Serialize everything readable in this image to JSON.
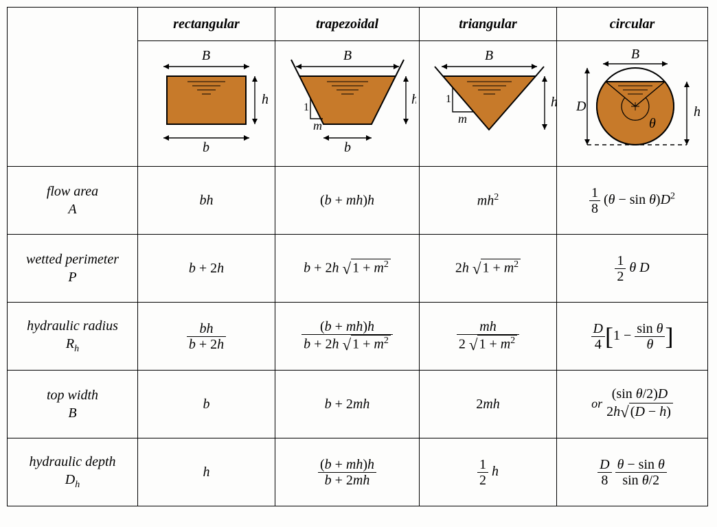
{
  "colors": {
    "fill": "#c77a2a",
    "stroke": "#000000",
    "bg": "#fdfdfc"
  },
  "columns": [
    {
      "key": "rectangular",
      "label": "rectangular"
    },
    {
      "key": "trapezoidal",
      "label": "trapezoidal"
    },
    {
      "key": "triangular",
      "label": "triangular"
    },
    {
      "key": "circular",
      "label": "circular"
    }
  ],
  "rows": [
    {
      "key": "flow_area",
      "label": "flow area",
      "symbol": "A"
    },
    {
      "key": "wetted_perimeter",
      "label": "wetted perimeter",
      "symbol": "P"
    },
    {
      "key": "hydraulic_radius",
      "label": "hydraulic radius",
      "symbol": "R",
      "sub": "h"
    },
    {
      "key": "top_width",
      "label": "top width",
      "symbol": "B"
    },
    {
      "key": "hydraulic_depth",
      "label": "hydraulic depth",
      "symbol": "D",
      "sub": "h"
    }
  ],
  "diagram_labels": {
    "B": "B",
    "b": "b",
    "h": "h",
    "m": "m",
    "one": "1",
    "D": "D",
    "theta": "θ"
  },
  "formulas": {
    "rectangular": {
      "flow_area": {
        "type": "plain",
        "html": "<span class='ital'>bh</span>"
      },
      "wetted_perimeter": {
        "type": "plain",
        "html": "<span class='ital'>b</span> + 2<span class='ital'>h</span>"
      },
      "hydraulic_radius": {
        "type": "frac",
        "num": "<span class='ital'>bh</span>",
        "den": "<span class='ital'>b</span> + 2<span class='ital'>h</span>"
      },
      "top_width": {
        "type": "plain",
        "html": "<span class='ital'>b</span>"
      },
      "hydraulic_depth": {
        "type": "plain",
        "html": "<span class='ital'>h</span>"
      }
    },
    "trapezoidal": {
      "flow_area": {
        "type": "plain",
        "html": "(<span class='ital'>b</span> + <span class='ital'>mh</span>)<span class='ital'>h</span>"
      },
      "wetted_perimeter": {
        "type": "plain",
        "html": "<span class='ital'>b</span> + 2<span class='ital'>h</span> <span class='radical'>√</span><span class='sqrt-wrap'><span class='radicand'>1 + <span class='ital'>m</span><span class='sup'>2</span></span></span>"
      },
      "hydraulic_radius": {
        "type": "frac",
        "num": "(<span class='ital'>b</span> + <span class='ital'>mh</span>)<span class='ital'>h</span>",
        "den": "<span class='ital'>b</span> + 2<span class='ital'>h</span> <span class='radical'>√</span><span class='sqrt-wrap'><span class='radicand'>1 + <span class='ital'>m</span><span class='sup'>2</span></span></span>"
      },
      "top_width": {
        "type": "plain",
        "html": "<span class='ital'>b</span> + 2<span class='ital'>mh</span>"
      },
      "hydraulic_depth": {
        "type": "frac",
        "num": "(<span class='ital'>b</span> + <span class='ital'>mh</span>)<span class='ital'>h</span>",
        "den": "<span class='ital'>b</span> + 2<span class='ital'>mh</span>"
      }
    },
    "triangular": {
      "flow_area": {
        "type": "plain",
        "html": "<span class='ital'>mh</span><span class='sup'>2</span>"
      },
      "wetted_perimeter": {
        "type": "plain",
        "html": "2<span class='ital'>h</span> <span class='radical'>√</span><span class='sqrt-wrap'><span class='radicand'>1 + <span class='ital'>m</span><span class='sup'>2</span></span></span>"
      },
      "hydraulic_radius": {
        "type": "frac",
        "num": "<span class='ital'>mh</span>",
        "den": "2 <span class='radical'>√</span><span class='sqrt-wrap'><span class='radicand'>1 + <span class='ital'>m</span><span class='sup'>2</span></span></span>"
      },
      "top_width": {
        "type": "plain",
        "html": "2<span class='ital'>mh</span>"
      },
      "hydraulic_depth": {
        "type": "plain",
        "html": "<span class='frac'><span class='num'>1</span><span class='den'>2</span></span> <span class='ital'>h</span>"
      }
    },
    "circular": {
      "flow_area": {
        "type": "plain",
        "html": "<span class='frac'><span class='num'>1</span><span class='den'>8</span></span> (<span class='ital'>θ</span> − sin <span class='ital'>θ</span>)<span class='ital'>D</span><span class='sup'>2</span>"
      },
      "wetted_perimeter": {
        "type": "plain",
        "html": "<span class='frac'><span class='num'>1</span><span class='den'>2</span></span> <span class='ital'>θ D</span>"
      },
      "hydraulic_radius": {
        "type": "plain",
        "html": "<span class='frac'><span class='num'><span class='ital'>D</span></span><span class='den'>4</span></span><span class='bracket'>[</span>1 − <span class='frac'><span class='num'>sin <span class='ital'>θ</span></span><span class='den'><span class='ital'>θ</span></span></span><span class='bracket'>]</span>"
      },
      "top_width": {
        "type": "plain",
        "html": "<span class='small-or'>or</span><span class='stack'><span>(sin <span class='ital'>θ</span>/2)<span class='ital'>D</span></span><span>2<span class='ital'>h</span><span class='radical'>√</span><span class='sqrt-wrap'><span class='radicand'>(<span class='ital'>D</span> − <span class='ital'>h</span>)</span></span></span></span>"
      },
      "hydraulic_depth": {
        "type": "plain",
        "html": "<span class='frac'><span class='num'><span class='ital'>D</span></span><span class='den'>8</span></span> <span class='frac'><span class='num'><span class='ital'>θ</span> − sin <span class='ital'>θ</span></span><span class='den'>sin <span class='ital'>θ</span>/2</span></span>"
      }
    }
  }
}
